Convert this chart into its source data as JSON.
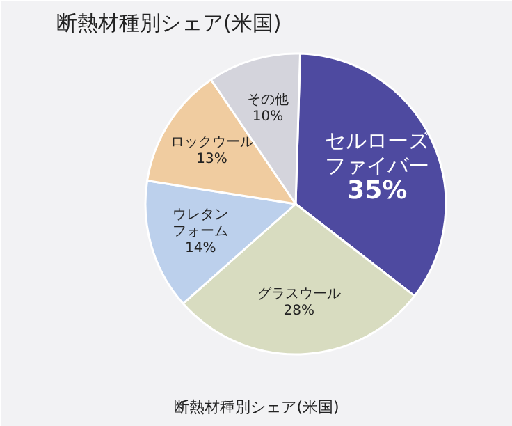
{
  "chart_data": {
    "type": "pie",
    "title": "断熱材種別シェア(米国)",
    "categories": [
      "セルローズファイバー",
      "グラスウール",
      "ウレタンフォーム",
      "ロックウール",
      "その他"
    ],
    "values": [
      35,
      28,
      14,
      13,
      10
    ],
    "value_labels": [
      "35%",
      "28%",
      "14%",
      "13%",
      "10%"
    ],
    "colors": [
      "#4e4aa0",
      "#d8dcc0",
      "#bcd0ec",
      "#f0cca0",
      "#d4d4dc"
    ],
    "annotations": [
      "断熱材種別シェア(米国)"
    ]
  }
}
